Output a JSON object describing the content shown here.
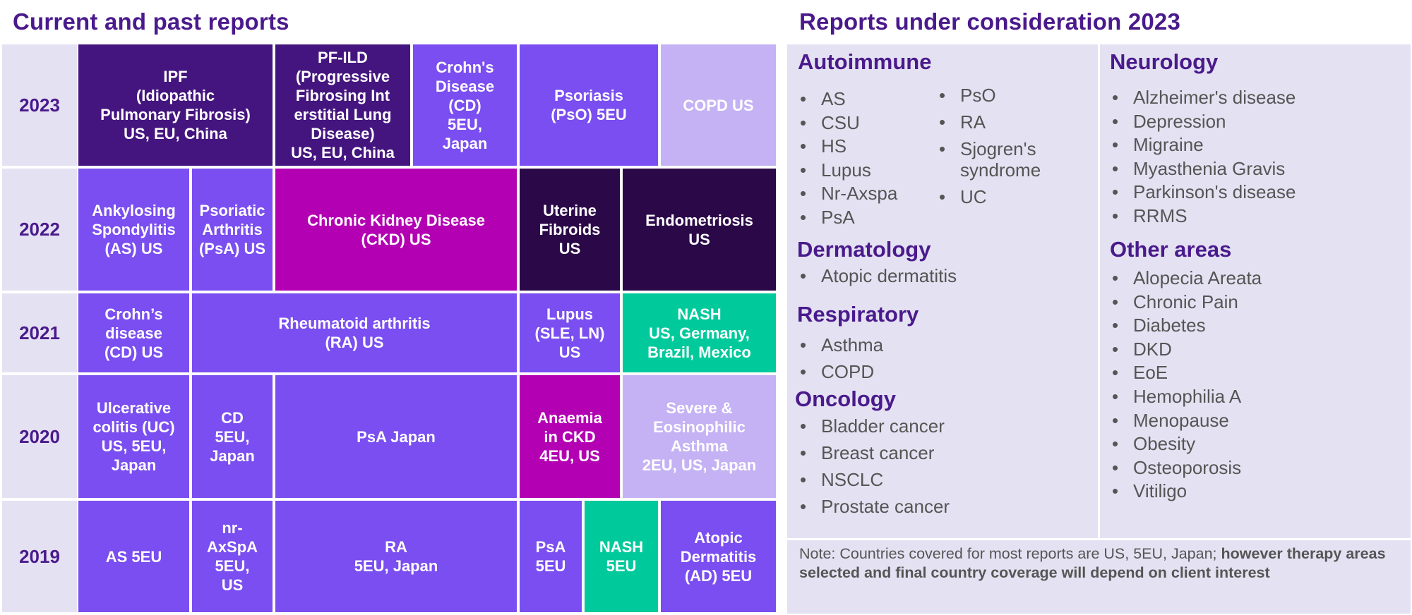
{
  "left_title": "Current and past reports",
  "right_title": "Reports under consideration 2023",
  "years": [
    "2023",
    "2022",
    "2021",
    "2020",
    "2019"
  ],
  "colors": {
    "dark_purple": "#45157f",
    "purple": "#7a4ef0",
    "magenta": "#b300b3",
    "very_dark": "#2b0948",
    "green": "#00c99b",
    "lavender": "#c4b2f4",
    "panel_bg": "#e4e2f2",
    "title": "#4a1a8c"
  },
  "reports": [
    {
      "year": "2023",
      "text": "IPF\n(Idiopathic\nPulmonary Fibrosis)\nUS, EU, China",
      "color": "dark_purple"
    },
    {
      "year": "2023",
      "text": "PF-ILD\n(Progressive\nFibrosing Int\nerstitial Lung\nDisease)\nUS, EU, China",
      "color": "dark_purple"
    },
    {
      "year": "2023",
      "text": "Crohn's\nDisease\n(CD)\n5EU,\nJapan",
      "color": "purple"
    },
    {
      "year": "2023",
      "text": "Psoriasis\n(PsO) 5EU",
      "color": "purple"
    },
    {
      "year": "2023",
      "text": "COPD US",
      "color": "lavender"
    },
    {
      "year": "2022",
      "text": "Ankylosing\nSpondylitis\n(AS) US",
      "color": "purple"
    },
    {
      "year": "2022",
      "text": "Psoriatic\nArthritis\n(PsA) US",
      "color": "purple"
    },
    {
      "year": "2022",
      "text": "Chronic Kidney Disease\n(CKD) US",
      "color": "magenta"
    },
    {
      "year": "2022",
      "text": "Uterine\nFibroids\nUS",
      "color": "very_dark"
    },
    {
      "year": "2022",
      "text": "Endometriosis\nUS",
      "color": "very_dark"
    },
    {
      "year": "2021",
      "text": "Crohn’s\ndisease\n(CD) US",
      "color": "purple"
    },
    {
      "year": "2021",
      "text": "Rheumatoid arthritis\n(RA) US",
      "color": "purple"
    },
    {
      "year": "2021",
      "text": "Lupus\n(SLE, LN)\nUS",
      "color": "purple"
    },
    {
      "year": "2021",
      "text": "NASH\nUS, Germany,\nBrazil, Mexico",
      "color": "green"
    },
    {
      "year": "2020",
      "text": "Ulcerative\ncolitis (UC)\nUS, 5EU,\nJapan",
      "color": "purple"
    },
    {
      "year": "2020",
      "text": "CD\n5EU,\nJapan",
      "color": "purple"
    },
    {
      "year": "2020",
      "text": "PsA Japan",
      "color": "purple"
    },
    {
      "year": "2020",
      "text": "Anaemia\nin CKD\n4EU, US",
      "color": "magenta"
    },
    {
      "year": "2020",
      "text": "Severe &\nEosinophilic\nAsthma\n2EU, US, Japan",
      "color": "lavender"
    },
    {
      "year": "2019",
      "text": "AS 5EU",
      "color": "purple"
    },
    {
      "year": "2019",
      "text": "nr-\nAxSpA\n5EU,\nUS",
      "color": "purple"
    },
    {
      "year": "2019",
      "text": "RA\n5EU, Japan",
      "color": "purple"
    },
    {
      "year": "2019",
      "text": "PsA\n5EU",
      "color": "purple"
    },
    {
      "year": "2019",
      "text": "NASH\n5EU",
      "color": "green"
    },
    {
      "year": "2019",
      "text": "Atopic\nDermatitis\n(AD) 5EU",
      "color": "purple"
    }
  ],
  "categories": {
    "autoimmune": {
      "title": "Autoimmune",
      "col1": [
        "AS",
        "CSU",
        "HS",
        "Lupus",
        "Nr-Axspa",
        "PsA"
      ],
      "col2": [
        "PsO",
        "RA",
        "Sjogren's syndrome",
        "UC"
      ]
    },
    "dermatology": {
      "title": "Dermatology",
      "items": [
        "Atopic dermatitis"
      ]
    },
    "respiratory": {
      "title": "Respiratory",
      "items": [
        "Asthma",
        "COPD"
      ]
    },
    "oncology": {
      "title": "Oncology",
      "items": [
        "Bladder cancer",
        "Breast cancer",
        "NSCLC",
        "Prostate cancer"
      ]
    },
    "neurology": {
      "title": "Neurology",
      "items": [
        "Alzheimer's disease",
        "Depression",
        "Migraine",
        "Myasthenia Gravis",
        "Parkinson's disease",
        "RRMS"
      ]
    },
    "other": {
      "title": "Other areas",
      "items": [
        "Alopecia Areata",
        "Chronic Pain",
        "Diabetes",
        "DKD",
        "EoE",
        "Hemophilia A",
        "Menopause",
        "Obesity",
        "Osteoporosis",
        "Vitiligo"
      ]
    }
  },
  "note": {
    "plain": "Note: Countries covered for most reports are US, 5EU, Japan; ",
    "bold": "however therapy areas selected and final country coverage will depend on client interest"
  }
}
